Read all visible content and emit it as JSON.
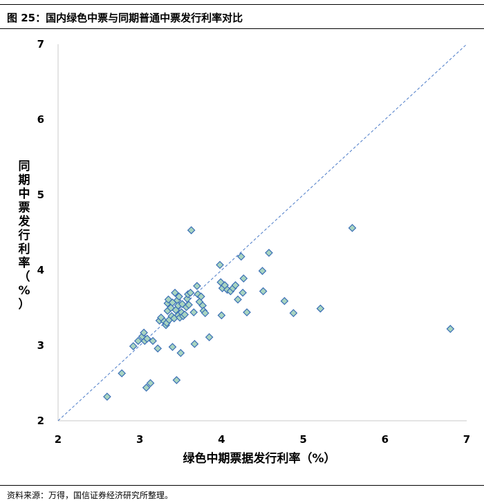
{
  "figure": {
    "title": "图 25：国内绿色中票与同期普通中票发行利率对比",
    "source": "资料来源：万得，国信证券经济研究所整理。"
  },
  "chart_data": {
    "type": "scatter",
    "title": "图 25：国内绿色中票与同期普通中票发行利率对比",
    "xlabel": "绿色中期票据发行利率（%）",
    "ylabel": "同期中票发行利率（%）",
    "xlim": [
      2,
      7
    ],
    "ylim": [
      2,
      7
    ],
    "xticks": [
      2,
      3,
      4,
      5,
      6,
      7
    ],
    "yticks": [
      2,
      3,
      4,
      5,
      6,
      7
    ],
    "grid": false,
    "reference_line": "y = x (dashed)",
    "marker": "diamond",
    "marker_fill": "#a8d4c0",
    "marker_edge": "#3a6fb5",
    "line_color": "#4a7ac7",
    "points": [
      [
        2.6,
        2.32
      ],
      [
        2.78,
        2.63
      ],
      [
        2.92,
        2.99
      ],
      [
        2.98,
        3.06
      ],
      [
        3.03,
        3.12
      ],
      [
        3.05,
        3.17
      ],
      [
        3.06,
        3.06
      ],
      [
        3.09,
        3.09
      ],
      [
        3.08,
        2.44
      ],
      [
        3.13,
        2.5
      ],
      [
        3.16,
        3.06
      ],
      [
        3.22,
        2.96
      ],
      [
        3.24,
        3.33
      ],
      [
        3.26,
        3.37
      ],
      [
        3.3,
        3.32
      ],
      [
        3.32,
        3.27
      ],
      [
        3.33,
        3.3
      ],
      [
        3.34,
        3.46
      ],
      [
        3.34,
        3.56
      ],
      [
        3.35,
        3.61
      ],
      [
        3.36,
        3.34
      ],
      [
        3.38,
        3.5
      ],
      [
        3.39,
        3.39
      ],
      [
        3.4,
        2.98
      ],
      [
        3.4,
        3.57
      ],
      [
        3.42,
        3.36
      ],
      [
        3.43,
        3.7
      ],
      [
        3.44,
        3.47
      ],
      [
        3.45,
        2.54
      ],
      [
        3.46,
        3.6
      ],
      [
        3.47,
        3.53
      ],
      [
        3.47,
        3.4
      ],
      [
        3.48,
        3.65
      ],
      [
        3.49,
        3.37
      ],
      [
        3.5,
        2.9
      ],
      [
        3.51,
        3.44
      ],
      [
        3.52,
        3.55
      ],
      [
        3.53,
        3.39
      ],
      [
        3.55,
        3.41
      ],
      [
        3.57,
        3.51
      ],
      [
        3.58,
        3.62
      ],
      [
        3.59,
        3.68
      ],
      [
        3.6,
        3.54
      ],
      [
        3.62,
        3.7
      ],
      [
        3.63,
        4.53
      ],
      [
        3.66,
        3.44
      ],
      [
        3.67,
        3.02
      ],
      [
        3.7,
        3.79
      ],
      [
        3.71,
        3.68
      ],
      [
        3.73,
        3.58
      ],
      [
        3.75,
        3.65
      ],
      [
        3.77,
        3.53
      ],
      [
        3.78,
        3.46
      ],
      [
        3.8,
        3.43
      ],
      [
        3.85,
        3.11
      ],
      [
        3.98,
        4.07
      ],
      [
        3.99,
        3.84
      ],
      [
        4.0,
        3.4
      ],
      [
        4.01,
        3.76
      ],
      [
        4.04,
        3.8
      ],
      [
        4.07,
        3.74
      ],
      [
        4.11,
        3.72
      ],
      [
        4.14,
        3.76
      ],
      [
        4.17,
        3.8
      ],
      [
        4.2,
        3.61
      ],
      [
        4.24,
        4.18
      ],
      [
        4.26,
        3.7
      ],
      [
        4.27,
        3.89
      ],
      [
        4.31,
        3.44
      ],
      [
        4.5,
        3.99
      ],
      [
        4.51,
        3.72
      ],
      [
        4.58,
        4.23
      ],
      [
        4.77,
        3.59
      ],
      [
        4.88,
        3.43
      ],
      [
        5.21,
        3.49
      ],
      [
        5.6,
        4.56
      ],
      [
        6.8,
        3.22
      ]
    ]
  }
}
